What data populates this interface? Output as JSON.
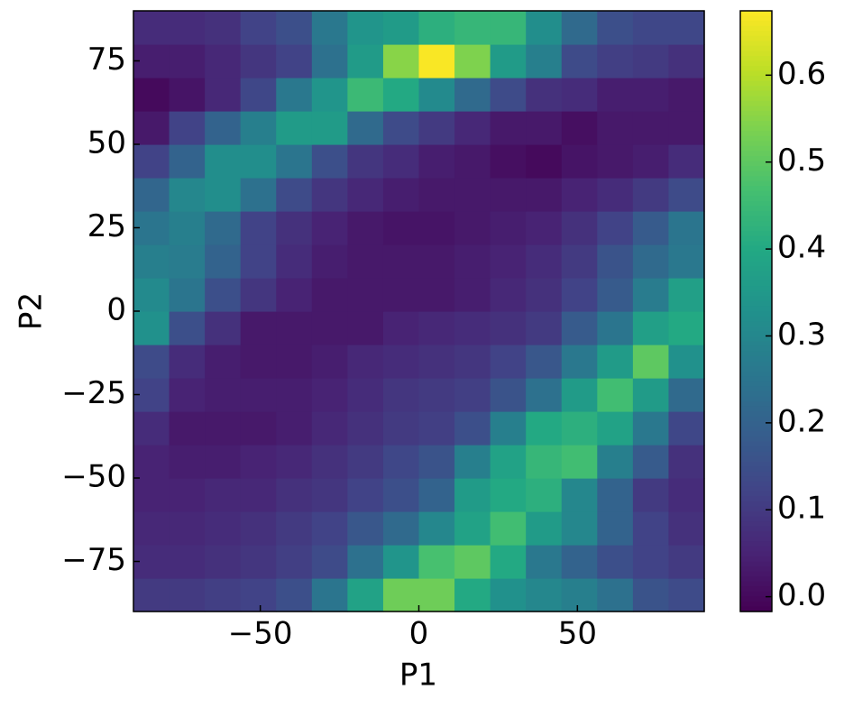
{
  "chart_data": {
    "type": "heatmap",
    "colormap": "viridis",
    "xlabel": "P1",
    "ylabel": "P2",
    "xbins": [
      -90,
      -78.75,
      -67.5,
      -56.25,
      -45,
      -33.75,
      -22.5,
      -11.25,
      0,
      11.25,
      22.5,
      33.75,
      45,
      56.25,
      67.5,
      78.75,
      90
    ],
    "ybins": [
      -90,
      -80,
      -70,
      -60,
      -50,
      -40,
      -30,
      -20,
      -10,
      0,
      10,
      20,
      30,
      40,
      50,
      60,
      70,
      80,
      90
    ],
    "z": [
      [
        0.1,
        0.1,
        0.11,
        0.12,
        0.15,
        0.25,
        0.38,
        0.52,
        0.52,
        0.4,
        0.33,
        0.3,
        0.28,
        0.24,
        0.16,
        0.14
      ],
      [
        0.07,
        0.07,
        0.08,
        0.09,
        0.11,
        0.14,
        0.24,
        0.34,
        0.47,
        0.5,
        0.4,
        0.26,
        0.2,
        0.15,
        0.12,
        0.1
      ],
      [
        0.06,
        0.06,
        0.07,
        0.08,
        0.1,
        0.12,
        0.17,
        0.22,
        0.3,
        0.38,
        0.46,
        0.36,
        0.3,
        0.2,
        0.12,
        0.08
      ],
      [
        0.05,
        0.05,
        0.06,
        0.06,
        0.08,
        0.09,
        0.12,
        0.15,
        0.2,
        0.36,
        0.4,
        0.42,
        0.3,
        0.2,
        0.1,
        0.07
      ],
      [
        0.05,
        0.04,
        0.04,
        0.05,
        0.06,
        0.08,
        0.1,
        0.13,
        0.16,
        0.28,
        0.38,
        0.44,
        0.46,
        0.28,
        0.18,
        0.08
      ],
      [
        0.07,
        0.03,
        0.03,
        0.03,
        0.04,
        0.06,
        0.08,
        0.1,
        0.11,
        0.15,
        0.28,
        0.4,
        0.42,
        0.38,
        0.26,
        0.13
      ],
      [
        0.12,
        0.05,
        0.04,
        0.04,
        0.04,
        0.05,
        0.07,
        0.09,
        0.1,
        0.11,
        0.16,
        0.24,
        0.36,
        0.46,
        0.36,
        0.22
      ],
      [
        0.14,
        0.07,
        0.04,
        0.03,
        0.03,
        0.04,
        0.06,
        0.07,
        0.08,
        0.09,
        0.12,
        0.17,
        0.26,
        0.36,
        0.5,
        0.33
      ],
      [
        0.33,
        0.15,
        0.08,
        0.03,
        0.03,
        0.03,
        0.03,
        0.05,
        0.06,
        0.07,
        0.08,
        0.1,
        0.18,
        0.25,
        0.37,
        0.4
      ],
      [
        0.31,
        0.25,
        0.15,
        0.09,
        0.05,
        0.03,
        0.03,
        0.03,
        0.03,
        0.04,
        0.06,
        0.08,
        0.12,
        0.18,
        0.27,
        0.37
      ],
      [
        0.28,
        0.27,
        0.2,
        0.12,
        0.07,
        0.04,
        0.03,
        0.03,
        0.03,
        0.04,
        0.05,
        0.07,
        0.1,
        0.16,
        0.22,
        0.26
      ],
      [
        0.25,
        0.28,
        0.22,
        0.12,
        0.08,
        0.05,
        0.03,
        0.02,
        0.02,
        0.03,
        0.04,
        0.05,
        0.08,
        0.12,
        0.18,
        0.25
      ],
      [
        0.21,
        0.3,
        0.32,
        0.24,
        0.14,
        0.09,
        0.06,
        0.04,
        0.03,
        0.03,
        0.03,
        0.03,
        0.05,
        0.07,
        0.1,
        0.14
      ],
      [
        0.12,
        0.2,
        0.32,
        0.32,
        0.25,
        0.15,
        0.09,
        0.07,
        0.04,
        0.03,
        0.01,
        0.0,
        0.02,
        0.03,
        0.04,
        0.07
      ],
      [
        0.03,
        0.12,
        0.2,
        0.28,
        0.36,
        0.36,
        0.22,
        0.14,
        0.1,
        0.06,
        0.03,
        0.03,
        0.01,
        0.03,
        0.03,
        0.03
      ],
      [
        0.0,
        0.02,
        0.06,
        0.13,
        0.26,
        0.34,
        0.45,
        0.4,
        0.31,
        0.22,
        0.14,
        0.08,
        0.07,
        0.04,
        0.04,
        0.03
      ],
      [
        0.04,
        0.04,
        0.06,
        0.09,
        0.12,
        0.24,
        0.36,
        0.55,
        0.67,
        0.54,
        0.36,
        0.28,
        0.14,
        0.11,
        0.1,
        0.08
      ],
      [
        0.07,
        0.07,
        0.08,
        0.12,
        0.15,
        0.26,
        0.34,
        0.36,
        0.42,
        0.44,
        0.44,
        0.32,
        0.22,
        0.15,
        0.13,
        0.13
      ]
    ],
    "xlim": [
      -90,
      90
    ],
    "ylim": [
      -90,
      90
    ],
    "xticks": [
      {
        "value": -50,
        "label": "−50"
      },
      0,
      50
    ],
    "yticks": [
      {
        "value": -75,
        "label": "−75"
      },
      {
        "value": -50,
        "label": "−50"
      },
      {
        "value": -25,
        "label": "−25"
      },
      0,
      25,
      50,
      75
    ],
    "clim": [
      -0.017,
      0.674
    ],
    "cticks": [
      {
        "value": 0,
        "label": "0.0"
      },
      0.1,
      0.2,
      0.3,
      0.4,
      0.5,
      0.6
    ]
  }
}
